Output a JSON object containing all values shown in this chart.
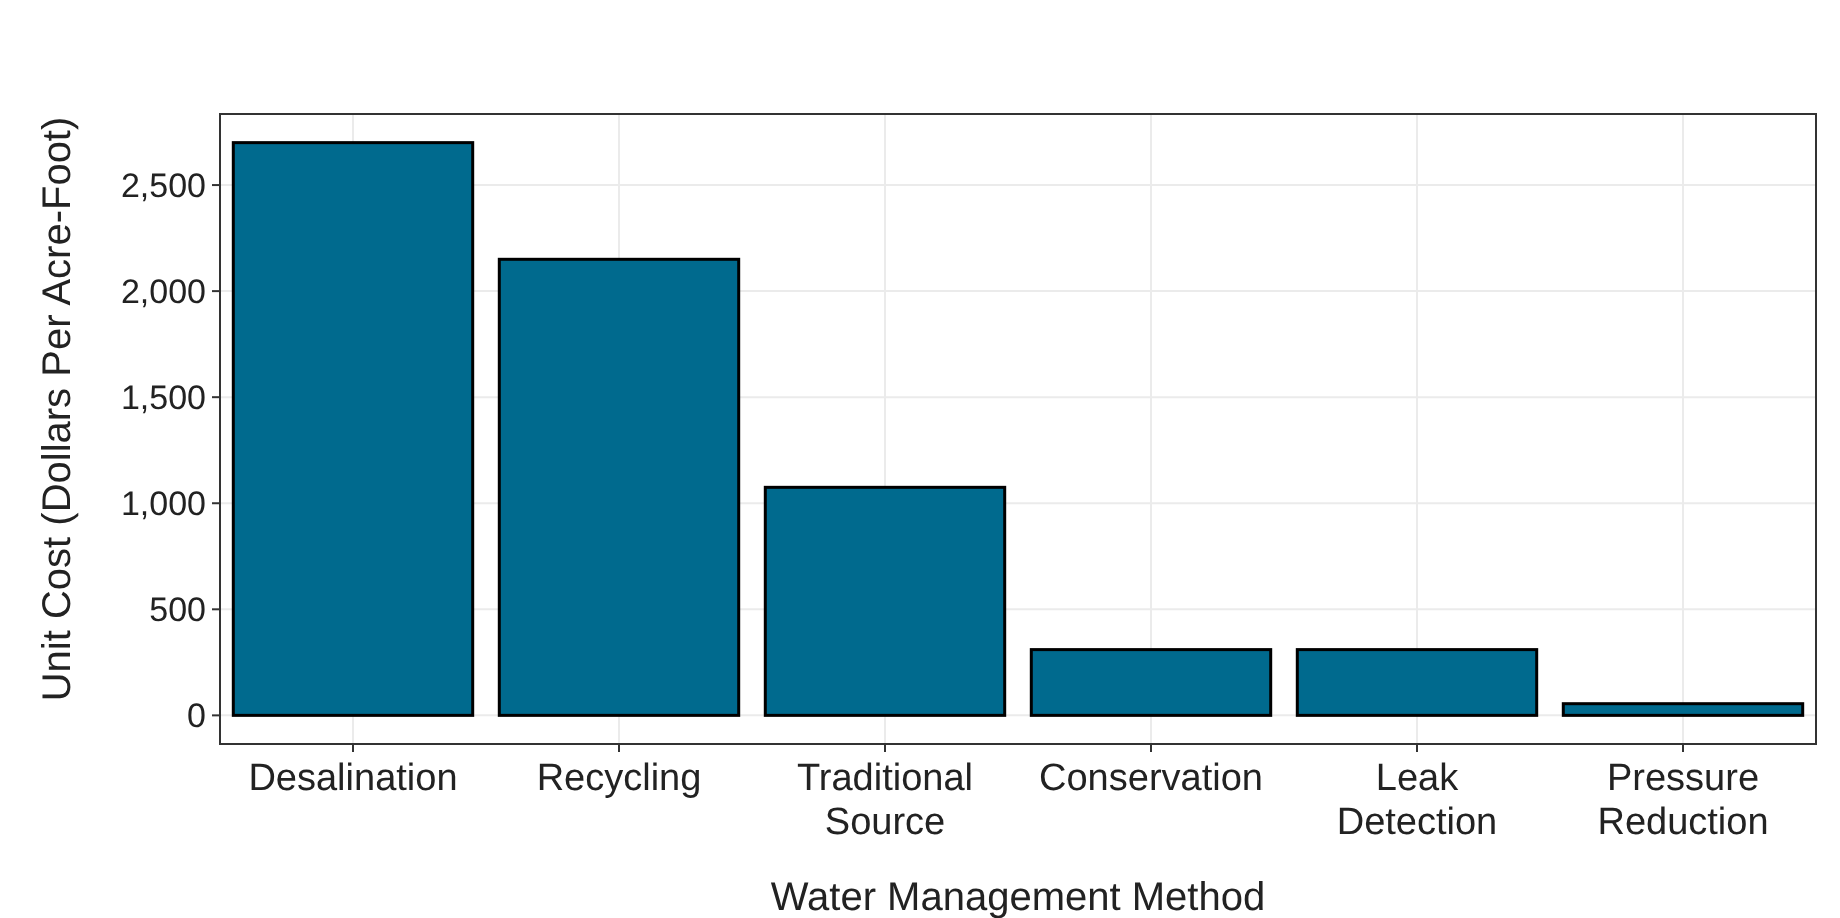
{
  "chart_data": {
    "type": "bar",
    "xlabel": "Water Management Method",
    "ylabel": "Unit Cost (Dollars Per Acre-Foot)",
    "categories": [
      "Desalination",
      "Recycling",
      "Traditional Source",
      "Conservation",
      "Leak Detection",
      "Pressure Reduction"
    ],
    "values": [
      2700,
      2150,
      1075,
      310,
      310,
      55
    ],
    "color": "#006a8e",
    "ylim": [
      -135,
      2835
    ],
    "yticks": [
      0,
      500,
      {
        "value": 1000,
        "label": "1,000"
      },
      {
        "value": 1500,
        "label": "1,500"
      },
      {
        "value": 2000,
        "label": "2,000"
      },
      {
        "value": 2500,
        "label": "2,500"
      }
    ],
    "grid": true
  }
}
